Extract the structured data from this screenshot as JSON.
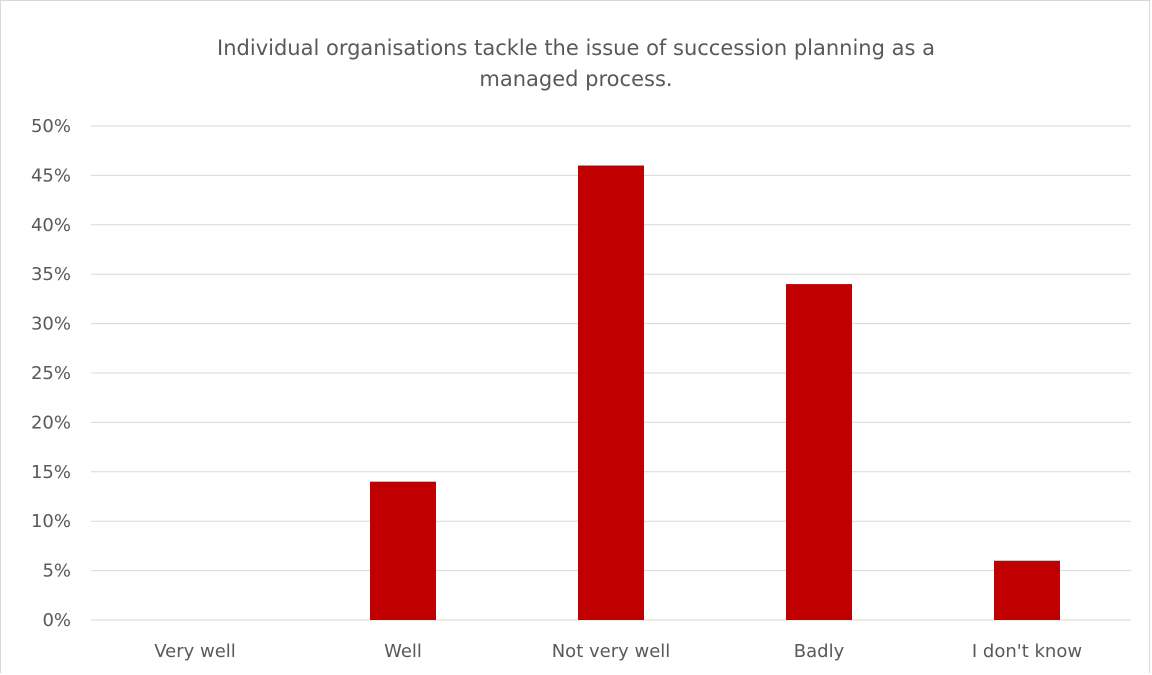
{
  "chart_data": {
    "type": "bar",
    "title_lines": [
      "Individual organisations tackle the issue of succession planning as a",
      "managed process."
    ],
    "categories": [
      "Very well",
      "Well",
      "Not very well",
      "Badly",
      "I don't know"
    ],
    "values": [
      0,
      14,
      46,
      34,
      6
    ],
    "unit": "%",
    "ylim": [
      0,
      50
    ],
    "ytick_step": 5,
    "ytick_labels": [
      "0%",
      "5%",
      "10%",
      "15%",
      "20%",
      "25%",
      "30%",
      "35%",
      "40%",
      "45%",
      "50%"
    ],
    "grid": true,
    "legend": "none",
    "bar_color": "#c00000",
    "grid_color": "#d9d9d9",
    "text_color": "#595959"
  }
}
